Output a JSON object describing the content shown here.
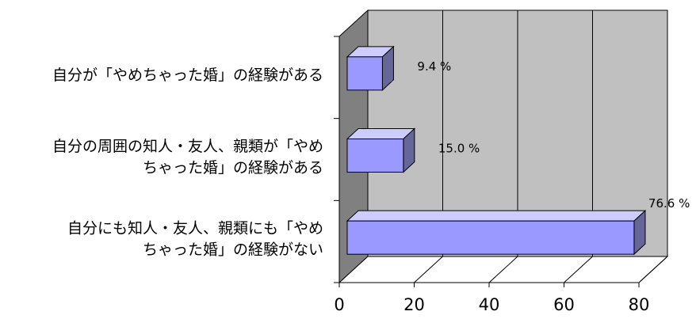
{
  "chart_data": {
    "type": "bar",
    "orientation": "horizontal",
    "style": "3d",
    "categories": [
      [
        "自分が「やめちゃった婚」の経験がある"
      ],
      [
        "自分の周囲の知人・友人、親類が「やめ",
        "ちゃった婚」の経験がある"
      ],
      [
        "自分にも知人・友人、親類にも「やめ",
        "ちゃった婚」の経験がない"
      ]
    ],
    "values": [
      9.4,
      15.0,
      76.6
    ],
    "value_labels": [
      "9.4 %",
      "15.0 %",
      "76.6 %"
    ],
    "xlim": [
      0,
      80
    ],
    "xticks": [
      0,
      20,
      40,
      60,
      80
    ],
    "grid": true,
    "legend": "none",
    "colors": {
      "bar_front": "#9999ff",
      "bar_top": "#ccccff",
      "bar_side": "#666699",
      "back_wall": "#c0c0c0",
      "side_wall": "#808080",
      "floor": "#ffffff",
      "lines": "#000000"
    }
  }
}
